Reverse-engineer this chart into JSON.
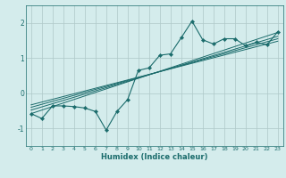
{
  "xlabel": "Humidex (Indice chaleur)",
  "background_color": "#d4ecec",
  "grid_color": "#aec8c8",
  "line_color": "#1a6b6b",
  "xlim": [
    -0.5,
    23.5
  ],
  "ylim": [
    -1.5,
    2.5
  ],
  "xticks": [
    0,
    1,
    2,
    3,
    4,
    5,
    6,
    7,
    8,
    9,
    10,
    11,
    12,
    13,
    14,
    15,
    16,
    17,
    18,
    19,
    20,
    21,
    22,
    23
  ],
  "yticks": [
    -1,
    0,
    1,
    2
  ],
  "main_x": [
    0,
    1,
    2,
    3,
    4,
    5,
    6,
    7,
    8,
    9,
    10,
    11,
    12,
    13,
    14,
    15,
    16,
    17,
    18,
    19,
    20,
    21,
    22,
    23
  ],
  "main_y": [
    -0.58,
    -0.72,
    -0.36,
    -0.36,
    -0.38,
    -0.42,
    -0.52,
    -1.05,
    -0.52,
    -0.18,
    0.65,
    0.72,
    1.08,
    1.12,
    1.58,
    2.05,
    1.52,
    1.4,
    1.55,
    1.55,
    1.35,
    1.45,
    1.38,
    1.75
  ],
  "reg_lines": [
    {
      "x": [
        0,
        23
      ],
      "y": [
        -0.58,
        1.73
      ]
    },
    {
      "x": [
        0,
        23
      ],
      "y": [
        -0.48,
        1.62
      ]
    },
    {
      "x": [
        0,
        23
      ],
      "y": [
        -0.4,
        1.55
      ]
    },
    {
      "x": [
        0,
        23
      ],
      "y": [
        -0.33,
        1.48
      ]
    }
  ]
}
